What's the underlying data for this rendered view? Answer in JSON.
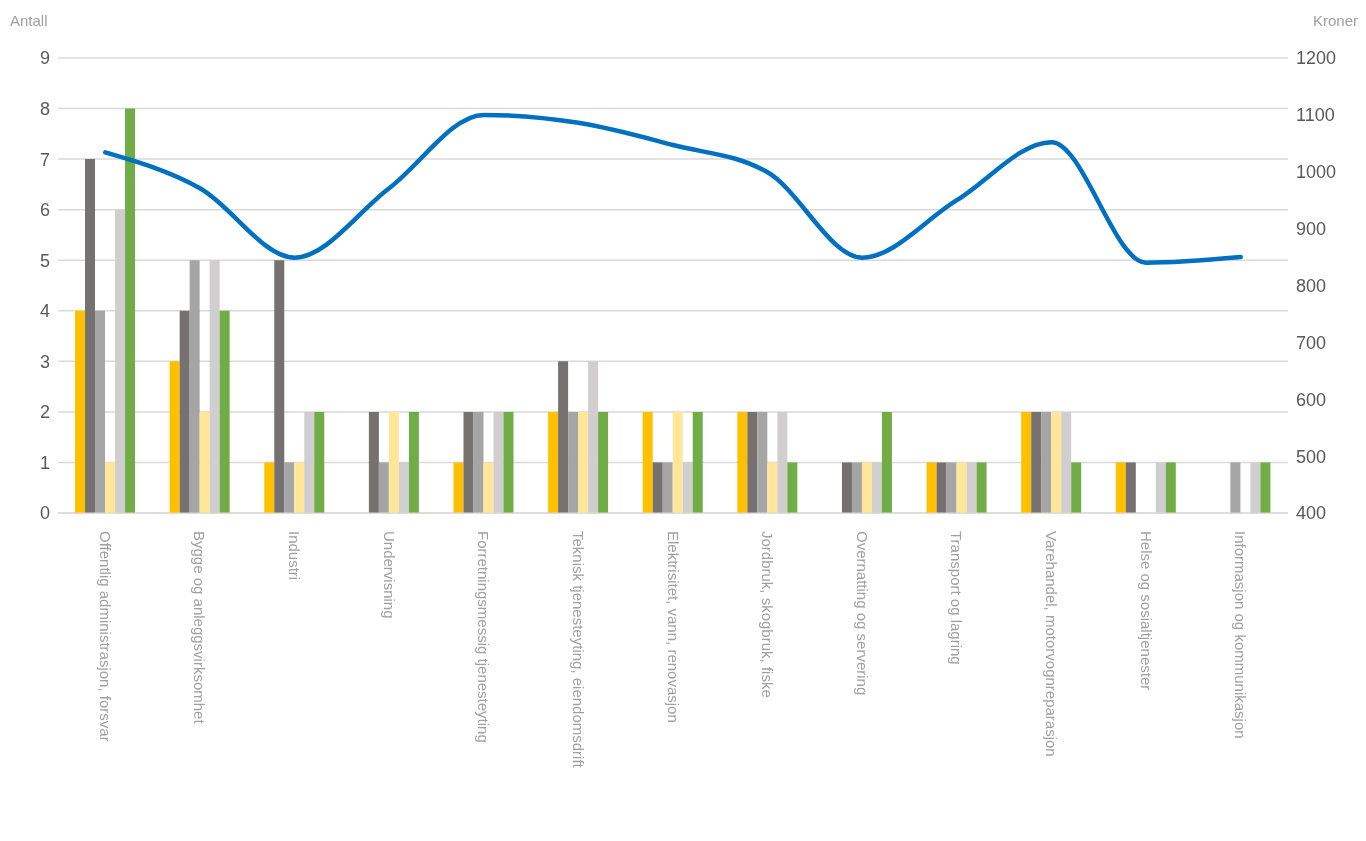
{
  "chart_data": {
    "type": "bar",
    "ylabel": "Antall",
    "y2label": "Kroner",
    "categories": [
      "Offentlig administrasjon, forsvar",
      "Bygge og anleggsvirksomhet",
      "Industri",
      "Undervisning",
      "Forretningsmessig tjenesteyting",
      "Teknisk tjenesteyting, eiendomsdrift",
      "Elektrisitet, vann, renovasjon",
      "Jordbruk, skogbruk, fiske",
      "Overnatting og servering",
      "Transport og lagring",
      "Varehandel, motorvognreparasjon",
      "Helse og sosialtjenester",
      "Informasjon og kommunikasjon"
    ],
    "series": [
      {
        "color": "#ffc000",
        "values": [
          4,
          3,
          1,
          0,
          1,
          2,
          2,
          2,
          0,
          1,
          2,
          1,
          0
        ]
      },
      {
        "color": "#767171",
        "values": [
          7,
          4,
          5,
          2,
          2,
          3,
          1,
          2,
          1,
          1,
          2,
          1,
          0
        ]
      },
      {
        "color": "#a5a5a5",
        "values": [
          4,
          5,
          1,
          1,
          2,
          2,
          1,
          2,
          1,
          1,
          2,
          0,
          1
        ]
      },
      {
        "color": "#ffe699",
        "values": [
          1,
          2,
          1,
          2,
          1,
          2,
          2,
          1,
          1,
          1,
          2,
          0,
          0
        ]
      },
      {
        "color": "#d0cece",
        "values": [
          6,
          5,
          2,
          1,
          2,
          3,
          1,
          2,
          1,
          1,
          2,
          1,
          1
        ]
      },
      {
        "color": "#70ad47",
        "values": [
          8,
          4,
          2,
          2,
          2,
          2,
          2,
          1,
          2,
          1,
          1,
          1,
          1
        ]
      },
      {
        "type": "line",
        "axis": "y2",
        "color": "#0070c0",
        "values": [
          1034,
          971,
          849,
          971,
          1100,
          1086,
          1047,
          999,
          849,
          950,
          1052,
          840,
          850
        ]
      }
    ],
    "ylim": [
      0,
      9
    ],
    "yticks": [
      0,
      1,
      2,
      3,
      4,
      5,
      6,
      7,
      8,
      9
    ],
    "y2lim": [
      400,
      1200
    ],
    "y2ticks": [
      400,
      500,
      600,
      700,
      800,
      900,
      1000,
      1100,
      1200
    ],
    "grid": "y",
    "legend": false,
    "marker": "none",
    "line_style": "solid"
  }
}
